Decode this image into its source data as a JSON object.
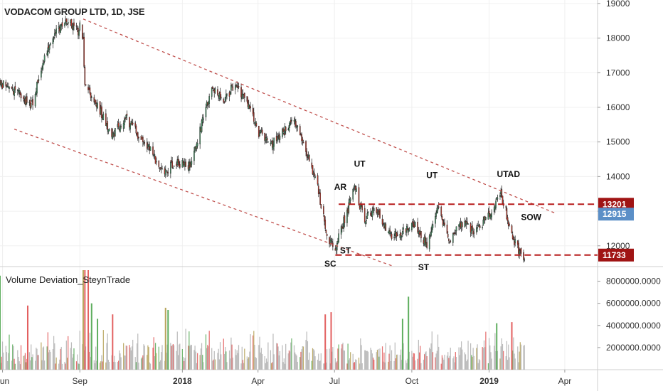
{
  "chart_title": "VODACOM GROUP LTD, 1D, JSE",
  "indicator_title": "Volume Deviation_SteynTrade",
  "colors": {
    "up": "#4a9a6a",
    "down": "#c0392b",
    "channel": "#c0504d",
    "level": "#b71c1c",
    "tag_red": "#a01414",
    "tag_blue": "#5b8fc7",
    "vol_grey": "#b5b5b5",
    "vol_red": "#e36060",
    "vol_green": "#5fae5f",
    "vol_olive": "#b7a45c"
  },
  "price_tags": [
    {
      "label": "13201",
      "value": 13201,
      "style": "red"
    },
    {
      "label": "12915",
      "value": 12915,
      "style": "blue"
    },
    {
      "label": "11733",
      "value": 11733,
      "style": "red"
    }
  ],
  "chart_data": [
    {
      "type": "candlestick",
      "title": "VODACOM GROUP LTD, 1D, JSE",
      "ylim": [
        11400,
        19100
      ],
      "y_ticks": [
        "19000",
        "18000",
        "17000",
        "16000",
        "15000",
        "14000",
        "13000",
        "12000"
      ],
      "y_tick_values": [
        19000,
        18000,
        17000,
        16000,
        15000,
        14000,
        13000,
        12000
      ],
      "x_ticks": [
        "Jun",
        "Sep",
        "2018",
        "Apr",
        "Jul",
        "Oct",
        "2019",
        "Apr"
      ],
      "x_tick_dates": [
        "2017-06-01",
        "2017-09-01",
        "2018-01-01",
        "2018-04-01",
        "2018-07-01",
        "2018-10-01",
        "2019-01-01",
        "2019-04-01"
      ],
      "date_range": [
        "2017-05-29",
        "2019-05-10"
      ],
      "approx_close_path": [
        [
          "2017-05-29",
          16700
        ],
        [
          "2017-06-20",
          16400
        ],
        [
          "2017-07-05",
          16000
        ],
        [
          "2017-07-20",
          17300
        ],
        [
          "2017-08-02",
          18200
        ],
        [
          "2017-08-18",
          18500
        ],
        [
          "2017-08-30",
          18200
        ],
        [
          "2017-09-01",
          18450
        ],
        [
          "2017-09-05",
          17900
        ],
        [
          "2017-09-07",
          16600
        ],
        [
          "2017-09-25",
          15900
        ],
        [
          "2017-10-10",
          15200
        ],
        [
          "2017-10-25",
          15700
        ],
        [
          "2017-11-10",
          15200
        ],
        [
          "2017-11-25",
          14700
        ],
        [
          "2017-12-10",
          14100
        ],
        [
          "2017-12-22",
          14400
        ],
        [
          "2018-01-10",
          14300
        ],
        [
          "2018-01-25",
          15600
        ],
        [
          "2018-02-05",
          16600
        ],
        [
          "2018-02-20",
          16200
        ],
        [
          "2018-03-05",
          16700
        ],
        [
          "2018-03-20",
          16100
        ],
        [
          "2018-04-01",
          15300
        ],
        [
          "2018-04-15",
          14900
        ],
        [
          "2018-05-01",
          15300
        ],
        [
          "2018-05-15",
          15600
        ],
        [
          "2018-05-28",
          14700
        ],
        [
          "2018-06-10",
          13800
        ],
        [
          "2018-06-22",
          12300
        ],
        [
          "2018-07-01",
          11900
        ],
        [
          "2018-07-12",
          12700
        ],
        [
          "2018-07-25",
          13700
        ],
        [
          "2018-08-05",
          12800
        ],
        [
          "2018-08-20",
          13000
        ],
        [
          "2018-09-05",
          12300
        ],
        [
          "2018-09-20",
          12400
        ],
        [
          "2018-10-05",
          12600
        ],
        [
          "2018-10-20",
          12000
        ],
        [
          "2018-11-01",
          13100
        ],
        [
          "2018-11-15",
          12200
        ],
        [
          "2018-12-01",
          12700
        ],
        [
          "2018-12-15",
          12400
        ],
        [
          "2019-01-01",
          12900
        ],
        [
          "2019-01-15",
          13500
        ],
        [
          "2019-01-22",
          12900
        ],
        [
          "2019-01-28",
          12300
        ],
        [
          "2019-02-05",
          11900
        ],
        [
          "2019-02-12",
          11600
        ]
      ],
      "annotations": [
        {
          "text": "SC",
          "date": "2018-06-26",
          "price": 11400
        },
        {
          "text": "ST",
          "date": "2018-07-14",
          "price": 11780
        },
        {
          "text": "AR",
          "date": "2018-07-08",
          "price": 13620
        },
        {
          "text": "UT",
          "date": "2018-07-31",
          "price": 14280
        },
        {
          "text": "UT",
          "date": "2018-10-25",
          "price": 13960
        },
        {
          "text": "ST",
          "date": "2018-10-15",
          "price": 11300
        },
        {
          "text": "UTAD",
          "date": "2019-01-24",
          "price": 13990
        },
        {
          "text": "SOW",
          "date": "2019-02-20",
          "price": 12750
        }
      ],
      "levels": [
        {
          "value": 13201,
          "from": "2018-07-06",
          "to": "2019-05-10"
        },
        {
          "value": 11733,
          "from": "2018-07-02",
          "to": "2019-05-10"
        }
      ],
      "channel": [
        {
          "from": [
            "2017-09-05",
            18550
          ],
          "to": [
            "2019-03-20",
            12950
          ]
        },
        {
          "from": [
            "2017-06-15",
            15370
          ],
          "to": [
            "2018-09-10",
            11400
          ]
        }
      ]
    },
    {
      "type": "bar",
      "title": "Volume Deviation_SteynTrade",
      "ylim": [
        0,
        9000000
      ],
      "y_ticks": [
        "8000000.0000",
        "6000000.0000",
        "4000000.0000",
        "2000000.0000"
      ],
      "y_tick_values": [
        8000000,
        6000000,
        4000000,
        2000000
      ],
      "baseline_volume_range": [
        500000,
        2500000
      ],
      "notable_spikes": [
        {
          "date": "2017-05-29",
          "value": 8500000,
          "color": "green"
        },
        {
          "date": "2017-07-01",
          "value": 5800000,
          "color": "red"
        },
        {
          "date": "2017-09-05",
          "value": 9000000,
          "color": "olive"
        },
        {
          "date": "2017-09-07",
          "value": 9000000,
          "color": "red"
        },
        {
          "date": "2017-09-11",
          "value": 9000000,
          "color": "red"
        },
        {
          "date": "2017-09-15",
          "value": 6000000,
          "color": "green"
        },
        {
          "date": "2017-09-22",
          "value": 4600000,
          "color": "green"
        },
        {
          "date": "2017-10-10",
          "value": 5000000,
          "color": "red"
        },
        {
          "date": "2017-12-12",
          "value": 5600000,
          "color": "olive"
        },
        {
          "date": "2017-12-15",
          "value": 5400000,
          "color": "green"
        },
        {
          "date": "2018-06-20",
          "value": 5000000,
          "color": "red"
        },
        {
          "date": "2018-06-27",
          "value": 5200000,
          "color": "red"
        },
        {
          "date": "2018-09-20",
          "value": 4600000,
          "color": "green"
        },
        {
          "date": "2018-09-27",
          "value": 6600000,
          "color": "green"
        },
        {
          "date": "2019-01-10",
          "value": 4200000,
          "color": "green"
        },
        {
          "date": "2019-01-28",
          "value": 4300000,
          "color": "red"
        }
      ]
    }
  ]
}
